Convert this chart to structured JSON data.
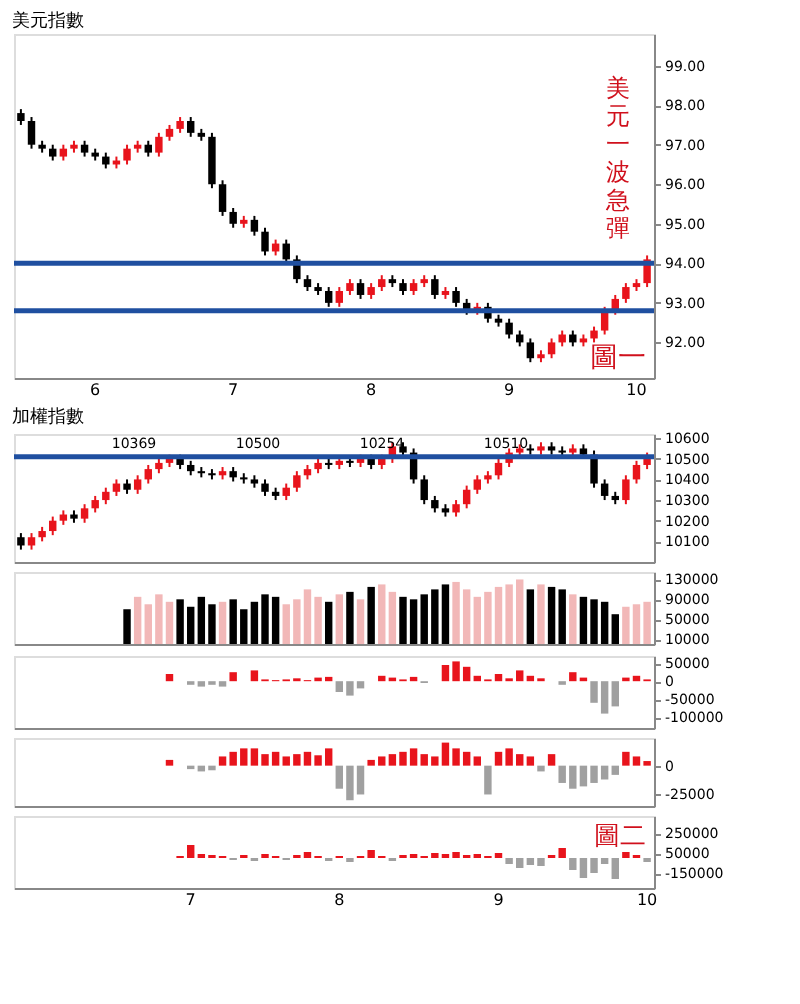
{
  "chart_data": [
    {
      "type": "candlestick",
      "title": "美元指數",
      "categories": [
        null,
        null,
        null,
        null,
        null,
        null,
        null,
        "6",
        null,
        null,
        null,
        null,
        null,
        null,
        null,
        null,
        null,
        null,
        null,
        null,
        "7",
        null,
        null,
        null,
        null,
        null,
        null,
        null,
        null,
        null,
        null,
        null,
        null,
        "8",
        null,
        null,
        null,
        null,
        null,
        null,
        null,
        null,
        null,
        null,
        null,
        null,
        "9",
        null,
        null,
        null,
        null,
        null,
        null,
        null,
        null,
        null,
        null,
        null,
        "10",
        null
      ],
      "ohlc": [
        [
          97.8,
          97.9,
          97.5,
          97.6
        ],
        [
          97.6,
          97.7,
          96.9,
          97.0
        ],
        [
          97.0,
          97.1,
          96.8,
          96.9
        ],
        [
          96.9,
          97.0,
          96.6,
          96.7
        ],
        [
          96.7,
          97.0,
          96.6,
          96.9
        ],
        [
          96.9,
          97.1,
          96.8,
          97.0
        ],
        [
          97.0,
          97.1,
          96.7,
          96.8
        ],
        [
          96.8,
          96.9,
          96.6,
          96.7
        ],
        [
          96.7,
          96.8,
          96.4,
          96.5
        ],
        [
          96.5,
          96.7,
          96.4,
          96.6
        ],
        [
          96.6,
          97.0,
          96.5,
          96.9
        ],
        [
          96.9,
          97.1,
          96.8,
          97.0
        ],
        [
          97.0,
          97.1,
          96.7,
          96.8
        ],
        [
          96.8,
          97.3,
          96.7,
          97.2
        ],
        [
          97.2,
          97.5,
          97.1,
          97.4
        ],
        [
          97.4,
          97.7,
          97.3,
          97.6
        ],
        [
          97.6,
          97.7,
          97.2,
          97.3
        ],
        [
          97.3,
          97.4,
          97.1,
          97.2
        ],
        [
          97.2,
          97.3,
          95.9,
          96.0
        ],
        [
          96.0,
          96.1,
          95.2,
          95.3
        ],
        [
          95.3,
          95.4,
          94.9,
          95.0
        ],
        [
          95.0,
          95.2,
          94.9,
          95.1
        ],
        [
          95.1,
          95.2,
          94.7,
          94.8
        ],
        [
          94.8,
          94.9,
          94.2,
          94.3
        ],
        [
          94.3,
          94.6,
          94.2,
          94.5
        ],
        [
          94.5,
          94.6,
          94.0,
          94.1
        ],
        [
          94.1,
          94.2,
          93.5,
          93.6
        ],
        [
          93.6,
          93.7,
          93.3,
          93.4
        ],
        [
          93.4,
          93.5,
          93.2,
          93.3
        ],
        [
          93.3,
          93.4,
          92.9,
          93.0
        ],
        [
          93.0,
          93.4,
          92.9,
          93.3
        ],
        [
          93.3,
          93.6,
          93.2,
          93.5
        ],
        [
          93.5,
          93.6,
          93.1,
          93.2
        ],
        [
          93.2,
          93.5,
          93.1,
          93.4
        ],
        [
          93.4,
          93.7,
          93.3,
          93.6
        ],
        [
          93.6,
          93.7,
          93.4,
          93.5
        ],
        [
          93.5,
          93.6,
          93.2,
          93.3
        ],
        [
          93.3,
          93.6,
          93.2,
          93.5
        ],
        [
          93.5,
          93.7,
          93.4,
          93.6
        ],
        [
          93.6,
          93.7,
          93.1,
          93.2
        ],
        [
          93.2,
          93.4,
          93.1,
          93.3
        ],
        [
          93.3,
          93.4,
          92.9,
          93.0
        ],
        [
          93.0,
          93.1,
          92.7,
          92.8
        ],
        [
          92.8,
          93.0,
          92.7,
          92.9
        ],
        [
          92.9,
          93.0,
          92.5,
          92.6
        ],
        [
          92.6,
          92.7,
          92.4,
          92.5
        ],
        [
          92.5,
          92.6,
          92.1,
          92.2
        ],
        [
          92.2,
          92.3,
          91.9,
          92.0
        ],
        [
          92.0,
          92.1,
          91.5,
          91.6
        ],
        [
          91.6,
          91.8,
          91.5,
          91.7
        ],
        [
          91.7,
          92.1,
          91.6,
          92.0
        ],
        [
          92.0,
          92.3,
          91.9,
          92.2
        ],
        [
          92.2,
          92.3,
          91.9,
          92.0
        ],
        [
          92.0,
          92.2,
          91.9,
          92.1
        ],
        [
          92.1,
          92.4,
          92.0,
          92.3
        ],
        [
          92.3,
          92.9,
          92.2,
          92.8
        ],
        [
          92.8,
          93.2,
          92.7,
          93.1
        ],
        [
          93.1,
          93.5,
          93.0,
          93.4
        ],
        [
          93.4,
          93.6,
          93.3,
          93.5
        ],
        [
          93.5,
          94.2,
          93.4,
          94.1
        ]
      ],
      "colors": [
        "#000000",
        "#000000",
        "#000000",
        "#000000",
        "#e8141c",
        "#e8141c",
        "#000000",
        "#000000",
        "#000000",
        "#e8141c",
        "#e8141c",
        "#e8141c",
        "#000000",
        "#e8141c",
        "#e8141c",
        "#e8141c",
        "#000000",
        "#000000",
        "#000000",
        "#000000",
        "#000000",
        "#e8141c",
        "#000000",
        "#000000",
        "#e8141c",
        "#000000",
        "#000000",
        "#000000",
        "#000000",
        "#000000",
        "#e8141c",
        "#e8141c",
        "#000000",
        "#e8141c",
        "#e8141c",
        "#000000",
        "#000000",
        "#e8141c",
        "#e8141c",
        "#000000",
        "#e8141c",
        "#000000",
        "#000000",
        "#e8141c",
        "#000000",
        "#000000",
        "#000000",
        "#000000",
        "#000000",
        "#e8141c",
        "#e8141c",
        "#e8141c",
        "#000000",
        "#e8141c",
        "#e8141c",
        "#e8141c",
        "#e8141c",
        "#e8141c",
        "#e8141c",
        "#e8141c"
      ],
      "ylim": [
        91.1,
        99.8
      ],
      "yticks": [
        {
          "value": 92,
          "label": "92.00"
        },
        {
          "value": 93,
          "label": "93.00"
        },
        {
          "value": 94,
          "label": "94.00"
        },
        {
          "value": 95,
          "label": "95.00"
        },
        {
          "value": 96,
          "label": "96.00"
        },
        {
          "value": 97,
          "label": "97.00"
        },
        {
          "value": 98,
          "label": "98.00"
        },
        {
          "value": 99,
          "label": "99.00"
        }
      ],
      "ref_lines": [
        {
          "axis": "y",
          "value": 94.0,
          "color": "#1f4fa0"
        },
        {
          "axis": "y",
          "value": 92.8,
          "color": "#1f4fa0"
        }
      ],
      "annotations": [
        "美元一波急彈",
        "圖一"
      ]
    },
    {
      "type": "candlestick",
      "title": "加權指數",
      "categories": [
        null,
        null,
        null,
        null,
        null,
        null,
        null,
        null,
        null,
        null,
        null,
        null,
        null,
        null,
        null,
        null,
        "7",
        null,
        null,
        null,
        null,
        null,
        null,
        null,
        null,
        null,
        null,
        null,
        null,
        null,
        "8",
        null,
        null,
        null,
        null,
        null,
        null,
        null,
        null,
        null,
        null,
        null,
        null,
        null,
        null,
        "9",
        null,
        null,
        null,
        null,
        null,
        null,
        null,
        null,
        null,
        null,
        null,
        null,
        null,
        "10"
      ],
      "ohlc": [
        [
          10120,
          10140,
          10060,
          10080
        ],
        [
          10080,
          10140,
          10060,
          10120
        ],
        [
          10120,
          10170,
          10100,
          10150
        ],
        [
          10150,
          10220,
          10130,
          10200
        ],
        [
          10200,
          10250,
          10180,
          10230
        ],
        [
          10230,
          10250,
          10190,
          10210
        ],
        [
          10210,
          10280,
          10190,
          10260
        ],
        [
          10260,
          10320,
          10240,
          10300
        ],
        [
          10300,
          10360,
          10280,
          10340
        ],
        [
          10340,
          10400,
          10320,
          10380
        ],
        [
          10380,
          10400,
          10330,
          10350
        ],
        [
          10350,
          10420,
          10330,
          10400
        ],
        [
          10400,
          10470,
          10380,
          10450
        ],
        [
          10450,
          10500,
          10430,
          10480
        ],
        [
          10480,
          10520,
          10460,
          10500
        ],
        [
          10500,
          10520,
          10450,
          10470
        ],
        [
          10470,
          10490,
          10420,
          10440
        ],
        [
          10440,
          10460,
          10410,
          10430
        ],
        [
          10430,
          10450,
          10400,
          10420
        ],
        [
          10420,
          10460,
          10400,
          10440
        ],
        [
          10440,
          10460,
          10390,
          10410
        ],
        [
          10410,
          10430,
          10380,
          10400
        ],
        [
          10400,
          10420,
          10360,
          10380
        ],
        [
          10380,
          10400,
          10320,
          10340
        ],
        [
          10340,
          10360,
          10300,
          10320
        ],
        [
          10320,
          10380,
          10300,
          10360
        ],
        [
          10360,
          10440,
          10340,
          10420
        ],
        [
          10420,
          10470,
          10400,
          10450
        ],
        [
          10450,
          10500,
          10430,
          10480
        ],
        [
          10480,
          10500,
          10450,
          10470
        ],
        [
          10470,
          10510,
          10450,
          10490
        ],
        [
          10490,
          10510,
          10460,
          10480
        ],
        [
          10480,
          10520,
          10460,
          10500
        ],
        [
          10500,
          10520,
          10450,
          10470
        ],
        [
          10470,
          10520,
          10450,
          10500
        ],
        [
          10500,
          10580,
          10480,
          10560
        ],
        [
          10560,
          10580,
          10510,
          10530
        ],
        [
          10530,
          10550,
          10380,
          10400
        ],
        [
          10400,
          10420,
          10280,
          10300
        ],
        [
          10300,
          10320,
          10240,
          10260
        ],
        [
          10260,
          10280,
          10220,
          10240
        ],
        [
          10240,
          10300,
          10220,
          10280
        ],
        [
          10280,
          10370,
          10260,
          10350
        ],
        [
          10350,
          10420,
          10330,
          10400
        ],
        [
          10400,
          10440,
          10380,
          10420
        ],
        [
          10420,
          10500,
          10400,
          10480
        ],
        [
          10480,
          10550,
          10460,
          10530
        ],
        [
          10530,
          10570,
          10510,
          10550
        ],
        [
          10550,
          10570,
          10520,
          10540
        ],
        [
          10540,
          10580,
          10520,
          10560
        ],
        [
          10560,
          10580,
          10520,
          10540
        ],
        [
          10540,
          10560,
          10510,
          10530
        ],
        [
          10530,
          10570,
          10510,
          10550
        ],
        [
          10550,
          10570,
          10500,
          10520
        ],
        [
          10520,
          10540,
          10360,
          10380
        ],
        [
          10380,
          10400,
          10300,
          10320
        ],
        [
          10320,
          10340,
          10280,
          10300
        ],
        [
          10300,
          10420,
          10280,
          10400
        ],
        [
          10400,
          10490,
          10380,
          10470
        ],
        [
          10470,
          10530,
          10450,
          10510
        ]
      ],
      "colors": [
        "#000000",
        "#e8141c",
        "#e8141c",
        "#e8141c",
        "#e8141c",
        "#000000",
        "#e8141c",
        "#e8141c",
        "#e8141c",
        "#e8141c",
        "#000000",
        "#e8141c",
        "#e8141c",
        "#e8141c",
        "#e8141c",
        "#000000",
        "#000000",
        "#000000",
        "#000000",
        "#e8141c",
        "#000000",
        "#000000",
        "#000000",
        "#000000",
        "#000000",
        "#e8141c",
        "#e8141c",
        "#e8141c",
        "#e8141c",
        "#000000",
        "#e8141c",
        "#000000",
        "#e8141c",
        "#000000",
        "#e8141c",
        "#e8141c",
        "#000000",
        "#000000",
        "#000000",
        "#000000",
        "#000000",
        "#e8141c",
        "#e8141c",
        "#e8141c",
        "#e8141c",
        "#e8141c",
        "#e8141c",
        "#e8141c",
        "#000000",
        "#e8141c",
        "#000000",
        "#000000",
        "#e8141c",
        "#000000",
        "#000000",
        "#000000",
        "#000000",
        "#e8141c",
        "#e8141c",
        "#e8141c"
      ],
      "ylim": [
        10000,
        10620
      ],
      "yticks": [
        10100,
        10200,
        10300,
        10400,
        10500,
        10600
      ],
      "ref_lines": [
        {
          "axis": "y",
          "value": 10510,
          "color": "#1f4fa0"
        }
      ],
      "annotations": [
        "10369",
        "10500",
        "10254",
        "10510"
      ],
      "tick_labels": "y"
    },
    {
      "type": "bar",
      "categories": [
        null,
        null,
        null,
        null,
        null,
        null,
        null,
        null,
        null,
        null,
        null,
        null,
        null,
        null,
        null,
        null,
        "7",
        null,
        null,
        null,
        null,
        null,
        null,
        null,
        null,
        null,
        null,
        null,
        null,
        null,
        "8",
        null,
        null,
        null,
        null,
        null,
        null,
        null,
        null,
        null,
        null,
        null,
        null,
        null,
        null,
        "9",
        null,
        null,
        null,
        null,
        null,
        null,
        null,
        null,
        null,
        null,
        null,
        null,
        null,
        "10"
      ],
      "values": [
        null,
        null,
        null,
        null,
        null,
        null,
        null,
        null,
        null,
        null,
        70000,
        95000,
        80000,
        100000,
        85000,
        90000,
        75000,
        95000,
        80000,
        85000,
        90000,
        70000,
        85000,
        100000,
        95000,
        80000,
        90000,
        110000,
        95000,
        85000,
        100000,
        105000,
        90000,
        115000,
        120000,
        105000,
        95000,
        90000,
        100000,
        110000,
        120000,
        125000,
        110000,
        95000,
        105000,
        115000,
        120000,
        130000,
        110000,
        120000,
        115000,
        110000,
        100000,
        95000,
        90000,
        85000,
        60000,
        75000,
        80000,
        85000
      ],
      "colors": [
        null,
        null,
        null,
        null,
        null,
        null,
        null,
        null,
        null,
        null,
        "#000000",
        "#f2b8b8",
        "#f2b8b8",
        "#f2b8b8",
        "#f2b8b8",
        "#000000",
        "#000000",
        "#000000",
        "#000000",
        "#f2b8b8",
        "#000000",
        "#000000",
        "#000000",
        "#000000",
        "#000000",
        "#f2b8b8",
        "#f2b8b8",
        "#f2b8b8",
        "#f2b8b8",
        "#000000",
        "#f2b8b8",
        "#000000",
        "#f2b8b8",
        "#000000",
        "#f2b8b8",
        "#f2b8b8",
        "#000000",
        "#000000",
        "#000000",
        "#000000",
        "#000000",
        "#f2b8b8",
        "#f2b8b8",
        "#f2b8b8",
        "#f2b8b8",
        "#f2b8b8",
        "#f2b8b8",
        "#f2b8b8",
        "#000000",
        "#f2b8b8",
        "#000000",
        "#000000",
        "#f2b8b8",
        "#000000",
        "#000000",
        "#000000",
        "#000000",
        "#f2b8b8",
        "#f2b8b8",
        "#f2b8b8"
      ],
      "ylim": [
        0,
        145000
      ],
      "yticks": [
        10000,
        50000,
        90000,
        130000
      ],
      "tick_labels": "y"
    },
    {
      "type": "bar",
      "categories": [
        null,
        null,
        null,
        null,
        null,
        null,
        null,
        null,
        null,
        null,
        null,
        null,
        null,
        null,
        null,
        null,
        "7",
        null,
        null,
        null,
        null,
        null,
        null,
        null,
        null,
        null,
        null,
        null,
        null,
        null,
        "8",
        null,
        null,
        null,
        null,
        null,
        null,
        null,
        null,
        null,
        null,
        null,
        null,
        null,
        null,
        "9",
        null,
        null,
        null,
        null,
        null,
        null,
        null,
        null,
        null,
        null,
        null,
        null,
        null,
        "10"
      ],
      "values": [
        null,
        null,
        null,
        null,
        null,
        null,
        null,
        null,
        null,
        null,
        null,
        null,
        null,
        null,
        20000,
        null,
        -10000,
        -15000,
        -10000,
        -15000,
        25000,
        null,
        30000,
        5000,
        3000,
        5000,
        8000,
        3000,
        10000,
        12000,
        -30000,
        -40000,
        -20000,
        null,
        15000,
        10000,
        5000,
        12000,
        -5000,
        null,
        45000,
        55000,
        40000,
        15000,
        5000,
        20000,
        8000,
        30000,
        15000,
        8000,
        null,
        -10000,
        25000,
        10000,
        -60000,
        -90000,
        -70000,
        10000,
        15000,
        5000
      ],
      "colors": [
        null,
        null,
        null,
        null,
        null,
        null,
        null,
        null,
        null,
        null,
        null,
        null,
        null,
        null,
        "#e8141c",
        null,
        "#a0a0a0",
        "#a0a0a0",
        "#a0a0a0",
        "#a0a0a0",
        "#e8141c",
        null,
        "#e8141c",
        "#e8141c",
        "#e8141c",
        "#e8141c",
        "#e8141c",
        "#e8141c",
        "#e8141c",
        "#e8141c",
        "#a0a0a0",
        "#a0a0a0",
        "#a0a0a0",
        null,
        "#e8141c",
        "#e8141c",
        "#e8141c",
        "#e8141c",
        "#a0a0a0",
        null,
        "#e8141c",
        "#e8141c",
        "#e8141c",
        "#e8141c",
        "#e8141c",
        "#e8141c",
        "#e8141c",
        "#e8141c",
        "#e8141c",
        "#e8141c",
        null,
        "#a0a0a0",
        "#e8141c",
        "#e8141c",
        "#a0a0a0",
        "#a0a0a0",
        "#a0a0a0",
        "#e8141c",
        "#e8141c",
        "#e8141c"
      ],
      "ylim": [
        -130000,
        70000
      ],
      "yticks": [
        -100000,
        -50000,
        0,
        50000
      ],
      "tick_labels": "y"
    },
    {
      "type": "bar",
      "categories": [
        null,
        null,
        null,
        null,
        null,
        null,
        null,
        null,
        null,
        null,
        null,
        null,
        null,
        null,
        null,
        null,
        "7",
        null,
        null,
        null,
        null,
        null,
        null,
        null,
        null,
        null,
        null,
        null,
        null,
        null,
        "8",
        null,
        null,
        null,
        null,
        null,
        null,
        null,
        null,
        null,
        null,
        null,
        null,
        null,
        null,
        "9",
        null,
        null,
        null,
        null,
        null,
        null,
        null,
        null,
        null,
        null,
        null,
        null,
        null,
        "10"
      ],
      "values": [
        null,
        null,
        null,
        null,
        null,
        null,
        null,
        null,
        null,
        null,
        null,
        null,
        null,
        null,
        5000,
        null,
        -3000,
        -5000,
        -4000,
        8000,
        12000,
        15000,
        15000,
        10000,
        12000,
        8000,
        10000,
        12000,
        9000,
        15000,
        -20000,
        -30000,
        -25000,
        5000,
        8000,
        10000,
        12000,
        15000,
        10000,
        8000,
        20000,
        15000,
        12000,
        8000,
        -25000,
        12000,
        15000,
        10000,
        8000,
        -5000,
        10000,
        -15000,
        -20000,
        -18000,
        -15000,
        -12000,
        -8000,
        12000,
        8000,
        4000
      ],
      "colors": [
        null,
        null,
        null,
        null,
        null,
        null,
        null,
        null,
        null,
        null,
        null,
        null,
        null,
        null,
        "#e8141c",
        null,
        "#a0a0a0",
        "#a0a0a0",
        "#a0a0a0",
        "#e8141c",
        "#e8141c",
        "#e8141c",
        "#e8141c",
        "#e8141c",
        "#e8141c",
        "#e8141c",
        "#e8141c",
        "#e8141c",
        "#e8141c",
        "#e8141c",
        "#a0a0a0",
        "#a0a0a0",
        "#a0a0a0",
        "#e8141c",
        "#e8141c",
        "#e8141c",
        "#e8141c",
        "#e8141c",
        "#e8141c",
        "#e8141c",
        "#e8141c",
        "#e8141c",
        "#e8141c",
        "#e8141c",
        "#a0a0a0",
        "#e8141c",
        "#e8141c",
        "#e8141c",
        "#e8141c",
        "#a0a0a0",
        "#e8141c",
        "#a0a0a0",
        "#a0a0a0",
        "#a0a0a0",
        "#a0a0a0",
        "#a0a0a0",
        "#a0a0a0",
        "#e8141c",
        "#e8141c",
        "#e8141c"
      ],
      "ylim": [
        -35000,
        24000
      ],
      "yticks": [
        -25000,
        0
      ],
      "tick_labels": "y"
    },
    {
      "type": "bar",
      "categories": [
        null,
        null,
        null,
        null,
        null,
        null,
        null,
        null,
        null,
        null,
        null,
        null,
        null,
        null,
        null,
        null,
        "7",
        null,
        null,
        null,
        null,
        null,
        null,
        null,
        null,
        null,
        null,
        null,
        null,
        null,
        "8",
        null,
        null,
        null,
        null,
        null,
        null,
        null,
        null,
        null,
        null,
        null,
        null,
        null,
        null,
        "9",
        null,
        null,
        null,
        null,
        null,
        null,
        null,
        null,
        null,
        null,
        null,
        null,
        null,
        "10"
      ],
      "values": [
        null,
        null,
        null,
        null,
        null,
        null,
        null,
        null,
        null,
        null,
        null,
        null,
        null,
        null,
        null,
        20000,
        130000,
        40000,
        30000,
        20000,
        -20000,
        30000,
        -30000,
        40000,
        20000,
        -20000,
        30000,
        60000,
        20000,
        -30000,
        20000,
        -40000,
        20000,
        80000,
        20000,
        -30000,
        30000,
        40000,
        20000,
        50000,
        40000,
        60000,
        30000,
        40000,
        20000,
        50000,
        -60000,
        -100000,
        -70000,
        -80000,
        30000,
        100000,
        -120000,
        -200000,
        -150000,
        -60000,
        -210000,
        60000,
        30000,
        -40000
      ],
      "colors": [
        null,
        null,
        null,
        null,
        null,
        null,
        null,
        null,
        null,
        null,
        null,
        null,
        null,
        null,
        null,
        "#e8141c",
        "#e8141c",
        "#e8141c",
        "#e8141c",
        "#e8141c",
        "#a0a0a0",
        "#e8141c",
        "#a0a0a0",
        "#e8141c",
        "#e8141c",
        "#a0a0a0",
        "#e8141c",
        "#e8141c",
        "#e8141c",
        "#a0a0a0",
        "#e8141c",
        "#a0a0a0",
        "#e8141c",
        "#e8141c",
        "#e8141c",
        "#a0a0a0",
        "#e8141c",
        "#e8141c",
        "#e8141c",
        "#e8141c",
        "#e8141c",
        "#e8141c",
        "#e8141c",
        "#e8141c",
        "#e8141c",
        "#e8141c",
        "#a0a0a0",
        "#a0a0a0",
        "#a0a0a0",
        "#a0a0a0",
        "#e8141c",
        "#e8141c",
        "#a0a0a0",
        "#a0a0a0",
        "#a0a0a0",
        "#a0a0a0",
        "#a0a0a0",
        "#e8141c",
        "#e8141c",
        "#a0a0a0"
      ],
      "ylim": [
        -300000,
        420000
      ],
      "yticks": [
        -150000,
        50000,
        250000
      ],
      "annotations": [
        "圖二"
      ]
    }
  ]
}
